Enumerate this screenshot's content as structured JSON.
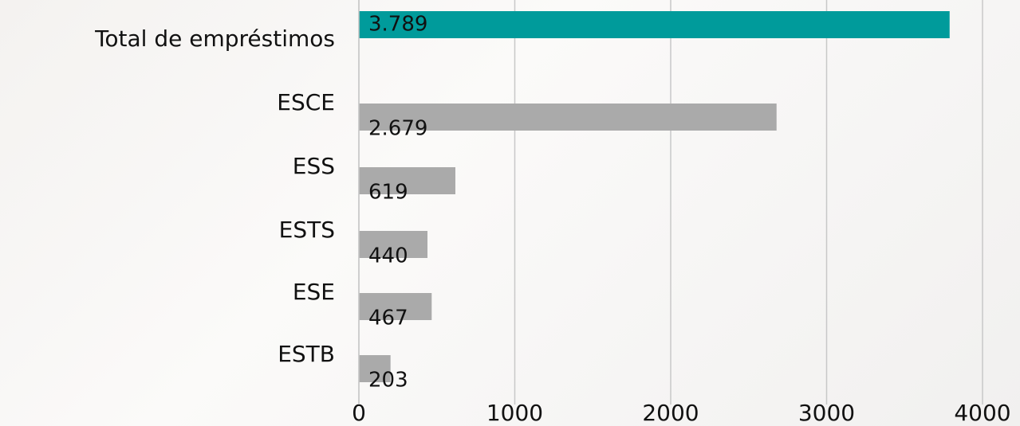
{
  "chart_data": {
    "type": "barh",
    "categories": [
      "Total de empréstimos",
      "ESCE",
      "ESS",
      "ESTS",
      "ESE",
      "ESTB"
    ],
    "values": [
      3789,
      2679,
      619,
      440,
      467,
      203
    ],
    "value_labels": [
      "3.789",
      "2.679",
      "619",
      "440",
      "467",
      "203"
    ],
    "colors": [
      "#009b9b",
      "#aaaaaa",
      "#aaaaaa",
      "#aaaaaa",
      "#aaaaaa",
      "#aaaaaa"
    ],
    "xlim": [
      0,
      4000
    ],
    "xticks": [
      0,
      1000,
      2000,
      3000,
      4000
    ],
    "grid": true
  }
}
